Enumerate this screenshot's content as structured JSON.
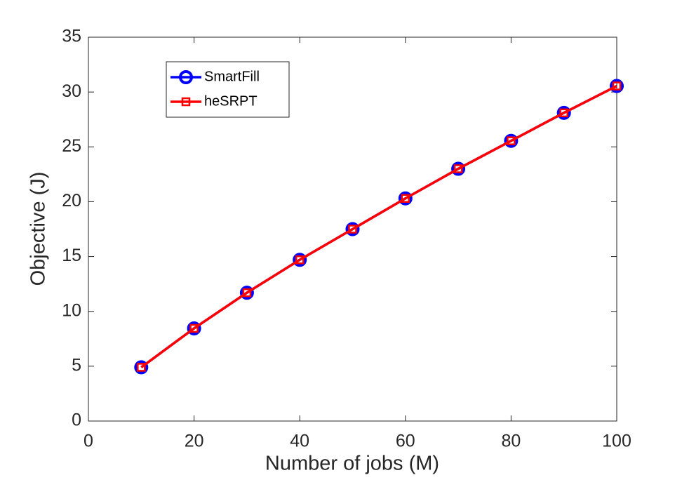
{
  "chart_data": {
    "type": "line",
    "x_label": "Number of jobs (M)",
    "y_label": "Objective (J)",
    "x": [
      10,
      20,
      30,
      40,
      50,
      60,
      70,
      80,
      90,
      100
    ],
    "series": [
      {
        "name": "SmartFill",
        "color": "#0000ff",
        "marker": "circle",
        "values": [
          4.9,
          8.45,
          11.7,
          14.7,
          17.5,
          20.3,
          23.0,
          25.55,
          28.1,
          30.55
        ]
      },
      {
        "name": "heSRPT",
        "color": "#ff0000",
        "marker": "square",
        "values": [
          4.9,
          8.45,
          11.7,
          14.7,
          17.5,
          20.3,
          23.0,
          25.55,
          28.1,
          30.55
        ]
      }
    ],
    "xlim": [
      0,
      100
    ],
    "xticks": [
      0,
      20,
      40,
      60,
      80,
      100
    ],
    "ylim": [
      0,
      35
    ],
    "yticks": [
      0,
      5,
      10,
      15,
      20,
      25,
      30,
      35
    ],
    "grid": false,
    "legend": "northwest"
  }
}
